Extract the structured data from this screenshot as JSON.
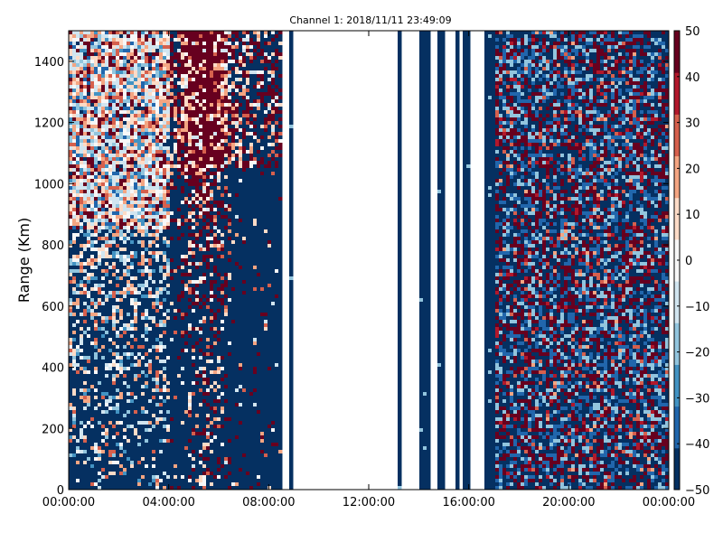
{
  "chart_data": {
    "type": "heatmap",
    "title": "Channel 1: 2018/11/11 23:49:09",
    "xlabel": "",
    "ylabel": "Range (Km)",
    "x_tick_labels": [
      "00:00:00",
      "04:00:00",
      "08:00:00",
      "12:00:00",
      "16:00:00",
      "20:00:00",
      "00:00:00"
    ],
    "x_range_hours": [
      0,
      24
    ],
    "y_ticks": [
      0,
      200,
      400,
      600,
      800,
      1000,
      1200,
      1400
    ],
    "ylim": [
      0,
      1500
    ],
    "colorbar": {
      "ticks": [
        50,
        40,
        30,
        20,
        10,
        0,
        -10,
        -20,
        -30,
        -40,
        -50
      ],
      "range": [
        -50,
        50
      ],
      "colormap": "RdBu_r",
      "colors": [
        "#053061",
        "#2166ac",
        "#4393c3",
        "#92c5de",
        "#d1e5f0",
        "#f7f7f7",
        "#fddbc7",
        "#f4a582",
        "#d6604d",
        "#b2182b",
        "#67001f"
      ]
    },
    "grid": false,
    "regions": [
      {
        "hours": [
          0.0,
          4.1
        ],
        "pattern": "bright noise above 800 km, deep blue with scattered noise below"
      },
      {
        "hours": [
          4.1,
          8.5
        ],
        "pattern": "deep blue base with noisy plume peaking near 05:00-06:30"
      },
      {
        "hours": [
          8.5,
          8.8
        ],
        "pattern": "no data gap"
      },
      {
        "hours": [
          8.8,
          9.0
        ],
        "pattern": "solid deep blue strip"
      },
      {
        "hours": [
          9.0,
          13.1
        ],
        "pattern": "no data"
      },
      {
        "hours": [
          13.1,
          13.3
        ],
        "pattern": "deep blue strip"
      },
      {
        "hours": [
          14.0,
          14.4
        ],
        "pattern": "deep blue strip"
      },
      {
        "hours": [
          14.8,
          15.0
        ],
        "pattern": "deep blue strip"
      },
      {
        "hours": [
          15.5,
          15.6
        ],
        "pattern": "deep blue strip"
      },
      {
        "hours": [
          15.8,
          16.0
        ],
        "pattern": "deep blue strip"
      },
      {
        "hours": [
          16.6,
          17.0
        ],
        "pattern": "deep blue strip"
      },
      {
        "hours": [
          17.1,
          24.0
        ],
        "pattern": "dense mixed red/blue noise"
      }
    ]
  }
}
